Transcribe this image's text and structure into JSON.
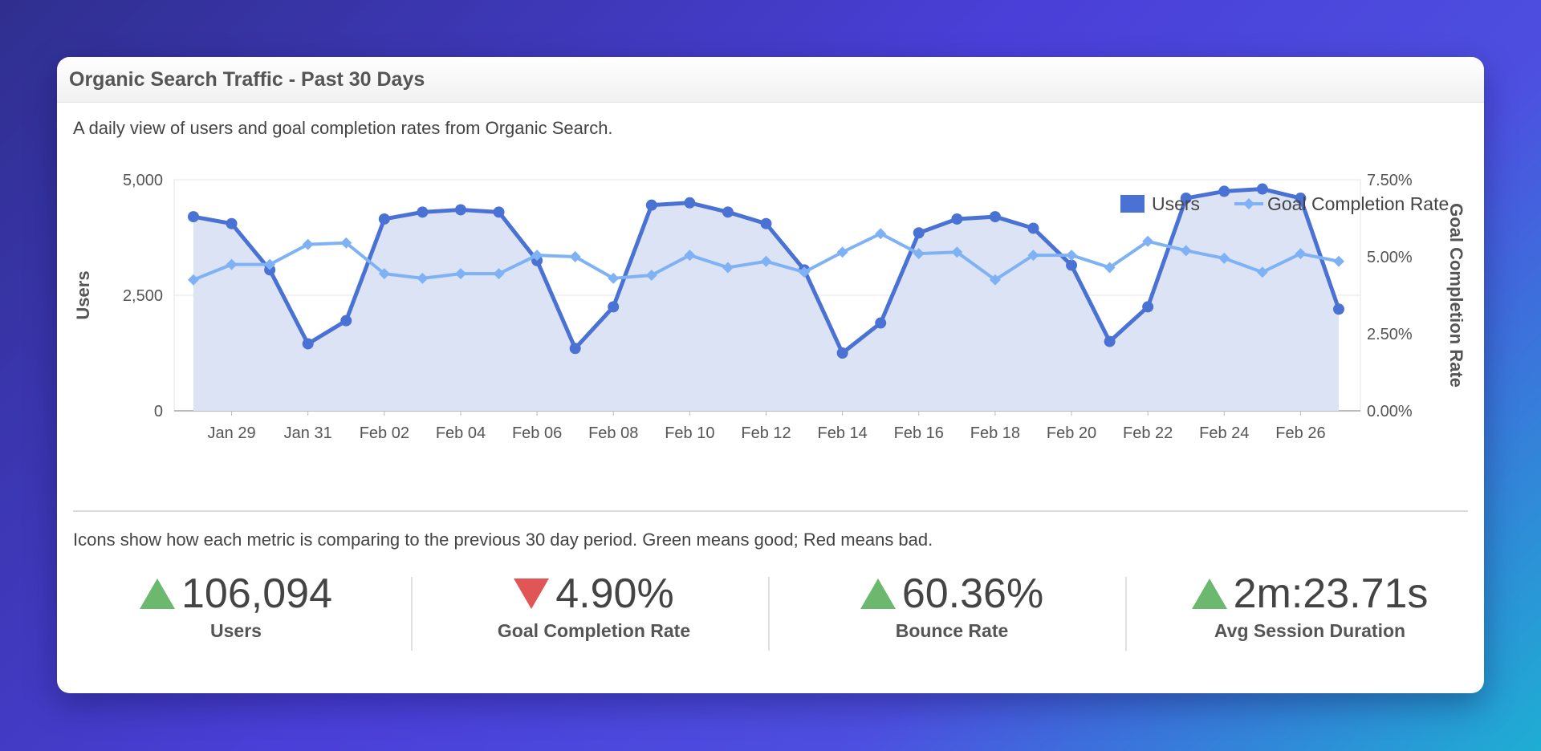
{
  "card": {
    "title": "Organic Search Traffic - Past 30 Days",
    "description": "A daily view of users and goal completion rates from Organic Search.",
    "note": "Icons show how each metric is comparing to the previous 30 day period. Green means good; Red means bad."
  },
  "colors": {
    "users": "#4a72d4",
    "users_fill": "#dce3f4",
    "goal_rate": "#7fb2f5",
    "up": "#6cb86f",
    "down": "#e05555"
  },
  "metrics": [
    {
      "value": "106,094",
      "label": "Users",
      "trend": "up"
    },
    {
      "value": "4.90%",
      "label": "Goal Completion Rate",
      "trend": "down"
    },
    {
      "value": "60.36%",
      "label": "Bounce Rate",
      "trend": "up"
    },
    {
      "value": "2m:23.71s",
      "label": "Avg Session Duration",
      "trend": "up"
    }
  ],
  "chart_data": {
    "type": "line",
    "legend": {
      "position": "top-right",
      "entries": [
        "Users",
        "Goal Completion Rate"
      ]
    },
    "x": [
      "Jan 28",
      "Jan 29",
      "Jan 30",
      "Jan 31",
      "Feb 01",
      "Feb 02",
      "Feb 03",
      "Feb 04",
      "Feb 05",
      "Feb 06",
      "Feb 07",
      "Feb 08",
      "Feb 09",
      "Feb 10",
      "Feb 11",
      "Feb 12",
      "Feb 13",
      "Feb 14",
      "Feb 15",
      "Feb 16",
      "Feb 17",
      "Feb 18",
      "Feb 19",
      "Feb 20",
      "Feb 21",
      "Feb 22",
      "Feb 23",
      "Feb 24",
      "Feb 25",
      "Feb 26",
      "Feb 27"
    ],
    "x_tick_labels": [
      "Jan 29",
      "Jan 31",
      "Feb 02",
      "Feb 04",
      "Feb 06",
      "Feb 08",
      "Feb 10",
      "Feb 12",
      "Feb 14",
      "Feb 16",
      "Feb 18",
      "Feb 20",
      "Feb 22",
      "Feb 24",
      "Feb 26"
    ],
    "series": [
      {
        "name": "Users",
        "axis": "left",
        "style": "area-line",
        "values": [
          4200,
          4050,
          3050,
          1450,
          1950,
          4150,
          4300,
          4350,
          4300,
          3250,
          1350,
          2250,
          4450,
          4500,
          4300,
          4050,
          3050,
          1250,
          1900,
          3850,
          4150,
          4200,
          3950,
          3150,
          1500,
          2250,
          4600,
          4750,
          4800,
          4600,
          2200
        ]
      },
      {
        "name": "Goal Completion Rate",
        "axis": "right",
        "style": "line-diamond",
        "values": [
          4.25,
          4.75,
          4.75,
          5.4,
          5.45,
          4.45,
          4.3,
          4.45,
          4.45,
          5.05,
          5.0,
          4.3,
          4.4,
          5.05,
          4.65,
          4.85,
          4.5,
          5.15,
          5.75,
          5.1,
          5.15,
          4.25,
          5.05,
          5.05,
          4.65,
          5.5,
          5.2,
          4.95,
          4.5,
          5.1,
          4.85
        ]
      }
    ],
    "y_left": {
      "label": "Users",
      "min": 0,
      "max": 5000,
      "ticks": [
        0,
        2500,
        5000
      ],
      "tick_labels": [
        "0",
        "2,500",
        "5,000"
      ]
    },
    "y_right": {
      "label": "Goal Completion Rate",
      "min": 0,
      "max": 7.5,
      "ticks": [
        0,
        2.5,
        5,
        7.5
      ],
      "tick_labels": [
        "0.00%",
        "2.50%",
        "5.00%",
        "7.50%"
      ]
    },
    "grid": true
  }
}
